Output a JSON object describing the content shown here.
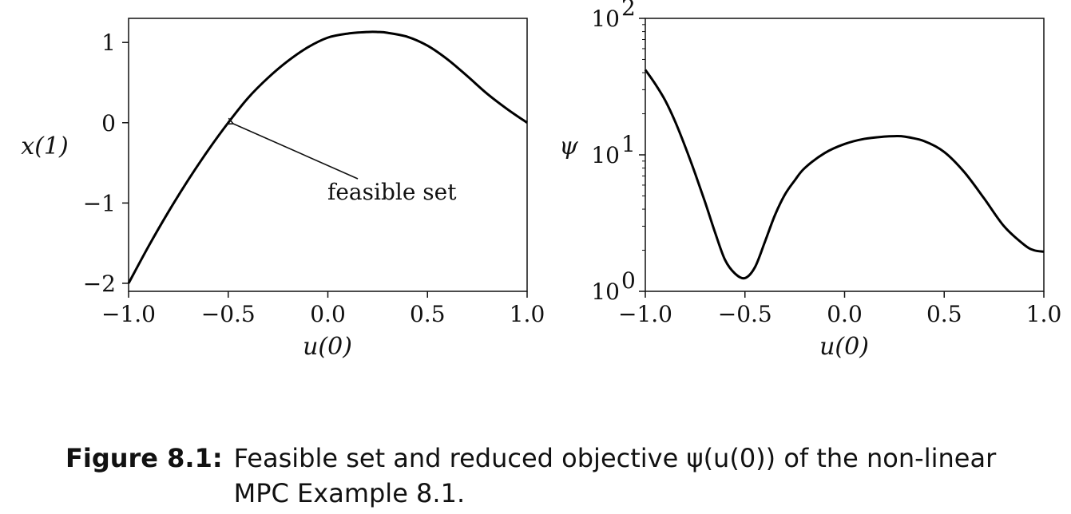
{
  "chart_data": [
    {
      "type": "line",
      "ylabel": "x(1)",
      "xlabel": "u(0)",
      "xlim": [
        -1.0,
        1.0
      ],
      "ylim": [
        -2.1,
        1.3
      ],
      "yscale": "linear",
      "x_ticks": [
        "−1.0",
        "−0.5",
        "0.0",
        "0.5",
        "1.0"
      ],
      "y_ticks": [
        "1",
        "0",
        "−1",
        "−2"
      ],
      "series": [
        {
          "x": [
            -1.0,
            -0.9,
            -0.8,
            -0.7,
            -0.6,
            -0.5,
            -0.4,
            -0.3,
            -0.2,
            -0.1,
            0.0,
            0.1,
            0.2,
            0.25,
            0.3,
            0.4,
            0.5,
            0.6,
            0.7,
            0.8,
            0.9,
            1.0
          ],
          "values": [
            -2.0,
            -1.54,
            -1.11,
            -0.71,
            -0.34,
            0.0,
            0.31,
            0.56,
            0.77,
            0.94,
            1.06,
            1.11,
            1.13,
            1.13,
            1.12,
            1.07,
            0.96,
            0.79,
            0.58,
            0.36,
            0.17,
            0.0
          ]
        }
      ],
      "annotations": [
        {
          "text": "feasible set",
          "points_to": [
            -0.5,
            0.0
          ]
        }
      ]
    },
    {
      "type": "line",
      "ylabel": "ψ",
      "xlabel": "u(0)",
      "xlim": [
        -1.0,
        1.0
      ],
      "ylim": [
        1,
        100
      ],
      "yscale": "log",
      "x_ticks": [
        "−1.0",
        "−0.5",
        "0.0",
        "0.5",
        "1.0"
      ],
      "y_ticks": [
        {
          "base": "10",
          "exp": "2",
          "value": 100
        },
        {
          "base": "10",
          "exp": "1",
          "value": 10
        },
        {
          "base": "10",
          "exp": "0",
          "value": 1
        }
      ],
      "series": [
        {
          "x": [
            -1.0,
            -0.95,
            -0.9,
            -0.85,
            -0.8,
            -0.75,
            -0.7,
            -0.65,
            -0.6,
            -0.55,
            -0.5,
            -0.45,
            -0.4,
            -0.35,
            -0.3,
            -0.25,
            -0.2,
            -0.1,
            0.0,
            0.1,
            0.2,
            0.25,
            0.3,
            0.4,
            0.5,
            0.6,
            0.7,
            0.8,
            0.9,
            0.95,
            1.0
          ],
          "values": [
            42,
            33,
            25,
            17.5,
            11.5,
            7.3,
            4.5,
            2.7,
            1.7,
            1.35,
            1.25,
            1.5,
            2.3,
            3.6,
            5.1,
            6.5,
            8.0,
            10.3,
            12.0,
            13.1,
            13.6,
            13.7,
            13.6,
            12.6,
            10.5,
            7.5,
            4.8,
            3.0,
            2.2,
            2.0,
            1.95
          ]
        }
      ]
    }
  ],
  "caption": {
    "label": "Figure 8.1:",
    "text": "Feasible set and reduced objective ψ(u(0)) of the non-linear MPC Example 8.1."
  }
}
